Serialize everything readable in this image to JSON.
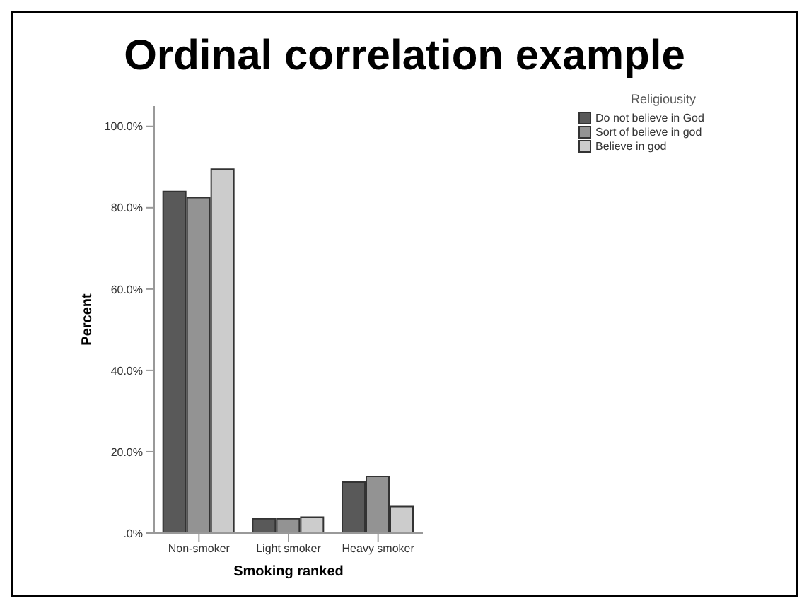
{
  "chart_data": {
    "type": "bar",
    "title": "Ordinal correlation example",
    "xlabel": "Smoking ranked",
    "ylabel": "Percent",
    "legend_title": "Religiousity",
    "categories": [
      "Non-smoker",
      "Light smoker",
      "Heavy smoker"
    ],
    "series": [
      {
        "name": "Do not believe in God",
        "color": "#595959",
        "values": [
          84.0,
          3.5,
          12.5
        ]
      },
      {
        "name": "Sort of believe in god",
        "color": "#939393",
        "values": [
          82.5,
          3.5,
          13.9
        ]
      },
      {
        "name": "Believe in god",
        "color": "#cccccc",
        "values": [
          89.5,
          3.9,
          6.5
        ]
      }
    ],
    "ylim": [
      0,
      105
    ],
    "yticks": [
      {
        "value": 0,
        "label": ".0%"
      },
      {
        "value": 20,
        "label": "20.0%"
      },
      {
        "value": 40,
        "label": "40.0%"
      },
      {
        "value": 60,
        "label": "60.0%"
      },
      {
        "value": 80,
        "label": "80.0%"
      },
      {
        "value": 100,
        "label": "100.0%"
      }
    ],
    "grid": false,
    "legend": "top right"
  }
}
